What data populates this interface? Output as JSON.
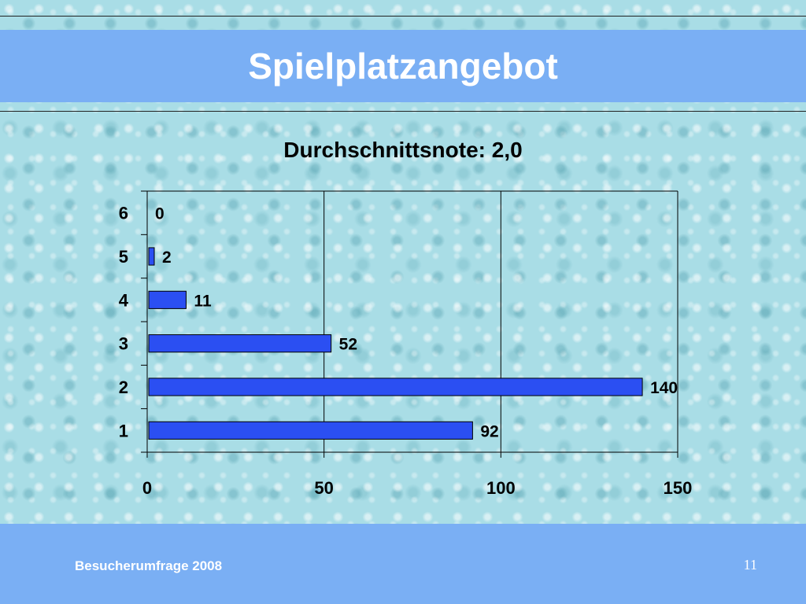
{
  "slide": {
    "title": "Spielplatzangebot",
    "footer_left": "Besucherumfrage 2008",
    "page_number": "11"
  },
  "colors": {
    "band": "#7aaff4",
    "bar_fill": "#2b4ff2",
    "bar_stroke": "#000000"
  },
  "chart_data": {
    "type": "bar",
    "orientation": "horizontal",
    "title": "Durchschnittsnote: 2,0",
    "xlabel": "",
    "ylabel": "",
    "categories": [
      "1",
      "2",
      "3",
      "4",
      "5",
      "6"
    ],
    "values": [
      92,
      140,
      52,
      11,
      2,
      0
    ],
    "data_labels": [
      "92",
      "140",
      "52",
      "11",
      "2",
      "0"
    ],
    "xlim": [
      0,
      150
    ],
    "x_ticks": [
      "0",
      "50",
      "100",
      "150"
    ],
    "grid": "vertical",
    "legend": "none"
  }
}
